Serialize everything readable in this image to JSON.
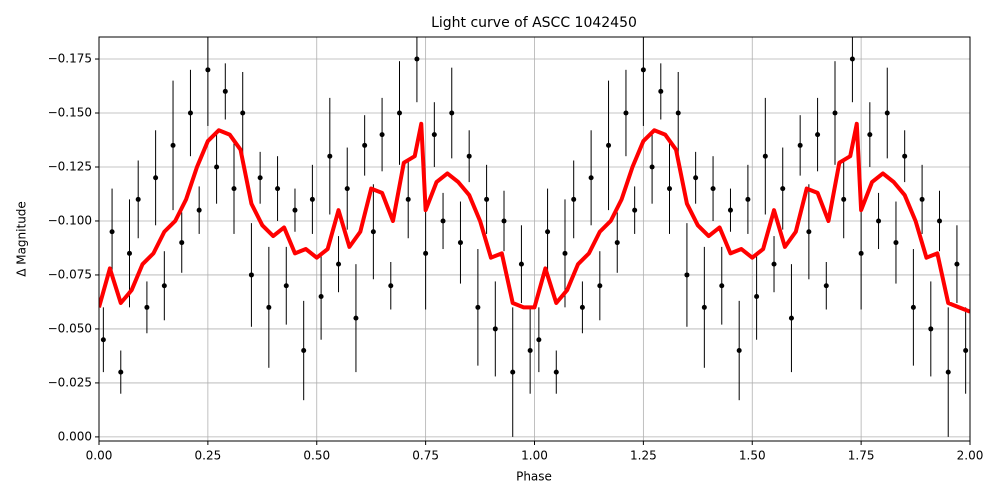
{
  "chart_data": {
    "type": "errorbar",
    "title": "Light curve of ASCC 1042450",
    "xlabel": "Phase",
    "ylabel": "Δ Magnitude",
    "xlim": [
      0,
      2
    ],
    "ylim": [
      0.0019,
      -0.1852
    ],
    "grid": true,
    "xticks": [
      {
        "value": 0,
        "label": "0.00"
      },
      {
        "value": 0.25,
        "label": "0.25"
      },
      {
        "value": 0.5,
        "label": "0.50"
      },
      {
        "value": 0.75,
        "label": "0.75"
      },
      {
        "value": 1,
        "label": "1.00"
      },
      {
        "value": 1.25,
        "label": "1.25"
      },
      {
        "value": 1.5,
        "label": "1.50"
      },
      {
        "value": 1.75,
        "label": "1.75"
      },
      {
        "value": 2,
        "label": "2.00"
      }
    ],
    "yticks": [
      {
        "value": 0,
        "label": "0.000"
      },
      {
        "value": -0.025,
        "label": "−0.025"
      },
      {
        "value": -0.05,
        "label": "−0.050"
      },
      {
        "value": -0.075,
        "label": "−0.075"
      },
      {
        "value": -0.1,
        "label": "−0.100"
      },
      {
        "value": -0.125,
        "label": "−0.125"
      },
      {
        "value": -0.15,
        "label": "−0.150"
      },
      {
        "value": -0.175,
        "label": "−0.175"
      }
    ],
    "series": [
      {
        "type": "errorbar",
        "color": "#000000",
        "x": [
          0.01,
          0.03,
          0.05,
          0.07,
          0.09,
          0.11,
          0.13,
          0.15,
          0.17,
          0.19,
          0.21,
          0.23,
          0.25,
          0.27,
          0.29,
          0.31,
          0.33,
          0.35,
          0.37,
          0.39,
          0.41,
          0.43,
          0.45,
          0.47,
          0.49,
          0.51,
          0.53,
          0.55,
          0.57,
          0.59,
          0.61,
          0.63,
          0.65,
          0.67,
          0.69,
          0.71,
          0.73,
          0.75,
          0.77,
          0.79,
          0.81,
          0.83,
          0.85,
          0.87,
          0.89,
          0.91,
          0.93,
          0.95,
          0.97,
          0.99,
          1.01,
          1.03,
          1.05,
          1.07,
          1.09,
          1.11,
          1.13,
          1.15,
          1.17,
          1.19,
          1.21,
          1.23,
          1.25,
          1.27,
          1.29,
          1.31,
          1.33,
          1.35,
          1.37,
          1.39,
          1.41,
          1.43,
          1.45,
          1.47,
          1.49,
          1.51,
          1.53,
          1.55,
          1.57,
          1.59,
          1.61,
          1.63,
          1.65,
          1.67,
          1.69,
          1.71,
          1.73,
          1.75,
          1.77,
          1.79,
          1.81,
          1.83,
          1.85,
          1.87,
          1.89,
          1.91,
          1.93,
          1.95,
          1.97,
          1.99
        ],
        "values": [
          -0.045,
          -0.095,
          -0.03,
          -0.085,
          -0.11,
          -0.06,
          -0.12,
          -0.07,
          -0.135,
          -0.09,
          -0.15,
          -0.105,
          -0.17,
          -0.125,
          -0.16,
          -0.115,
          -0.15,
          -0.075,
          -0.12,
          -0.06,
          -0.115,
          -0.07,
          -0.105,
          -0.04,
          -0.11,
          -0.065,
          -0.13,
          -0.08,
          -0.115,
          -0.055,
          -0.135,
          -0.095,
          -0.14,
          -0.07,
          -0.15,
          -0.11,
          -0.175,
          -0.085,
          -0.14,
          -0.1,
          -0.15,
          -0.09,
          -0.13,
          -0.06,
          -0.11,
          -0.05,
          -0.1,
          -0.03,
          -0.08,
          -0.04,
          -0.045,
          -0.095,
          -0.03,
          -0.085,
          -0.11,
          -0.06,
          -0.12,
          -0.07,
          -0.135,
          -0.09,
          -0.15,
          -0.105,
          -0.17,
          -0.125,
          -0.16,
          -0.115,
          -0.15,
          -0.075,
          -0.12,
          -0.06,
          -0.115,
          -0.07,
          -0.105,
          -0.04,
          -0.11,
          -0.065,
          -0.13,
          -0.08,
          -0.115,
          -0.055,
          -0.135,
          -0.095,
          -0.14,
          -0.07,
          -0.15,
          -0.11,
          -0.175,
          -0.085,
          -0.14,
          -0.1,
          -0.15,
          -0.09,
          -0.13,
          -0.06,
          -0.11,
          -0.05,
          -0.1,
          -0.03,
          -0.08,
          -0.04
        ],
        "errors": [
          0.015,
          0.02,
          0.01,
          0.025,
          0.018,
          0.012,
          0.022,
          0.016,
          0.03,
          0.014,
          0.02,
          0.011,
          0.026,
          0.017,
          0.013,
          0.021,
          0.019,
          0.024,
          0.012,
          0.028,
          0.015,
          0.018,
          0.01,
          0.023,
          0.016,
          0.02,
          0.027,
          0.013,
          0.019,
          0.025,
          0.014,
          0.022,
          0.017,
          0.011,
          0.024,
          0.018,
          0.02,
          0.026,
          0.015,
          0.013,
          0.021,
          0.019,
          0.012,
          0.027,
          0.016,
          0.022,
          0.014,
          0.03,
          0.018,
          0.02,
          0.015,
          0.02,
          0.01,
          0.025,
          0.018,
          0.012,
          0.022,
          0.016,
          0.03,
          0.014,
          0.02,
          0.011,
          0.026,
          0.017,
          0.013,
          0.021,
          0.019,
          0.024,
          0.012,
          0.028,
          0.015,
          0.018,
          0.01,
          0.023,
          0.016,
          0.02,
          0.027,
          0.013,
          0.019,
          0.025,
          0.014,
          0.022,
          0.017,
          0.011,
          0.024,
          0.018,
          0.02,
          0.026,
          0.015,
          0.013,
          0.021,
          0.019,
          0.012,
          0.027,
          0.016,
          0.022,
          0.014,
          0.03,
          0.018,
          0.02
        ]
      },
      {
        "type": "line",
        "color": "#ff0000",
        "x": [
          0,
          0.025,
          0.05,
          0.075,
          0.1,
          0.125,
          0.15,
          0.175,
          0.2,
          0.225,
          0.25,
          0.275,
          0.3,
          0.325,
          0.35,
          0.375,
          0.4,
          0.425,
          0.45,
          0.475,
          0.5,
          0.525,
          0.55,
          0.575,
          0.6,
          0.625,
          0.65,
          0.675,
          0.7,
          0.725,
          0.74,
          0.75,
          0.775,
          0.8,
          0.825,
          0.85,
          0.875,
          0.9,
          0.925,
          0.95,
          0.975,
          1,
          1.025,
          1.05,
          1.075,
          1.1,
          1.125,
          1.15,
          1.175,
          1.2,
          1.225,
          1.25,
          1.275,
          1.3,
          1.325,
          1.35,
          1.375,
          1.4,
          1.425,
          1.45,
          1.475,
          1.5,
          1.525,
          1.55,
          1.575,
          1.6,
          1.625,
          1.65,
          1.675,
          1.7,
          1.725,
          1.74,
          1.75,
          1.775,
          1.8,
          1.825,
          1.85,
          1.875,
          1.9,
          1.925,
          1.95,
          1.975,
          2
        ],
        "values": [
          -0.06,
          -0.078,
          -0.062,
          -0.068,
          -0.08,
          -0.085,
          -0.095,
          -0.1,
          -0.11,
          -0.125,
          -0.137,
          -0.142,
          -0.14,
          -0.133,
          -0.108,
          -0.098,
          -0.093,
          -0.097,
          -0.085,
          -0.087,
          -0.083,
          -0.087,
          -0.105,
          -0.088,
          -0.095,
          -0.115,
          -0.113,
          -0.1,
          -0.127,
          -0.13,
          -0.145,
          -0.105,
          -0.118,
          -0.122,
          -0.118,
          -0.112,
          -0.1,
          -0.083,
          -0.085,
          -0.062,
          -0.06,
          -0.06,
          -0.078,
          -0.062,
          -0.068,
          -0.08,
          -0.085,
          -0.095,
          -0.1,
          -0.11,
          -0.125,
          -0.137,
          -0.142,
          -0.14,
          -0.133,
          -0.108,
          -0.098,
          -0.093,
          -0.097,
          -0.085,
          -0.087,
          -0.083,
          -0.087,
          -0.105,
          -0.088,
          -0.095,
          -0.115,
          -0.113,
          -0.1,
          -0.127,
          -0.13,
          -0.145,
          -0.105,
          -0.118,
          -0.122,
          -0.118,
          -0.112,
          -0.1,
          -0.083,
          -0.085,
          -0.062,
          -0.06,
          -0.058
        ]
      }
    ]
  }
}
